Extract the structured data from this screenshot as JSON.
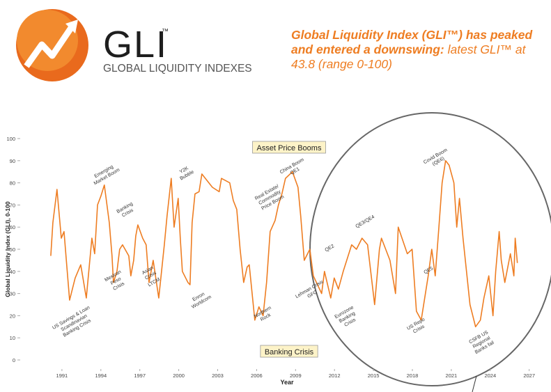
{
  "header": {
    "logo_mark": "GLI",
    "logo_tm": "™",
    "logo_tagline": "GLOBAL LIQUIDITY INDEXES",
    "headline_bold": "Global Liquidity Index (GLI™) has peaked and entered a downswing:",
    "headline_normal": "latest GLI™ at 43.8 (range 0-100)"
  },
  "chart_data": {
    "type": "line",
    "color": "#ee7d22",
    "x_label": "Year",
    "y_label": "Global Liquidity Index (GLI), 0-100",
    "xlim": [
      1988,
      2027.5
    ],
    "xticks": [
      1991,
      1994,
      1997,
      2000,
      2003,
      2006,
      2009,
      2012,
      2015,
      2018,
      2021,
      2024,
      2027
    ],
    "ylim": [
      0,
      100
    ],
    "yticks": [
      0,
      10,
      20,
      30,
      40,
      50,
      60,
      70,
      80,
      90,
      100
    ],
    "x": [
      1990.14,
      1990.3,
      1990.62,
      1990.95,
      1991.16,
      1991.38,
      1991.59,
      1992.02,
      1992.45,
      1992.88,
      1993.31,
      1993.52,
      1993.74,
      1994.0,
      1994.27,
      1994.65,
      1994.86,
      1994.97,
      1995.24,
      1995.45,
      1995.67,
      1996.15,
      1996.31,
      1996.53,
      1996.69,
      1996.85,
      1997.22,
      1997.49,
      1997.71,
      1998.03,
      1998.46,
      1998.89,
      1999.1,
      1999.42,
      1999.64,
      1999.96,
      2000.12,
      2000.28,
      2000.71,
      2000.87,
      2001.03,
      2001.25,
      2001.57,
      2001.78,
      2002.59,
      2003.12,
      2003.29,
      2003.93,
      2004.2,
      2004.47,
      2004.73,
      2005.0,
      2005.27,
      2005.43,
      2005.86,
      2006.18,
      2006.5,
      2006.77,
      2007.04,
      2007.42,
      2007.68,
      2007.95,
      2008.22,
      2008.76,
      2009.19,
      2009.4,
      2009.67,
      2010.1,
      2010.37,
      2010.69,
      2011.01,
      2011.23,
      2011.71,
      2011.98,
      2012.3,
      2012.67,
      2013.32,
      2013.69,
      2014.12,
      2014.55,
      2015.09,
      2015.46,
      2015.62,
      2016.27,
      2016.7,
      2016.91,
      2017.61,
      2017.98,
      2018.31,
      2018.68,
      2019.22,
      2019.49,
      2019.76,
      2020.02,
      2020.29,
      2020.56,
      2020.83,
      2021.2,
      2021.42,
      2021.63,
      2021.9,
      2022.17,
      2022.44,
      2022.87,
      2023.24,
      2023.51,
      2023.89,
      2024.21,
      2024.42,
      2024.69,
      2024.85,
      2025.12,
      2025.55,
      2025.82,
      2025.92,
      2026.09
    ],
    "values": [
      47,
      62,
      77,
      55,
      58,
      42,
      27,
      37,
      43,
      28,
      55,
      48,
      70,
      74,
      79,
      62,
      47,
      35,
      40,
      50,
      52,
      47,
      38,
      45,
      56,
      61,
      55,
      52,
      35,
      45,
      28,
      52,
      65,
      82,
      60,
      73,
      55,
      40,
      35,
      34,
      62,
      75,
      76,
      84,
      78,
      76,
      82,
      80,
      72,
      68,
      50,
      35,
      42,
      43,
      18,
      24,
      20,
      35,
      58,
      63,
      70,
      75,
      82,
      85,
      78,
      65,
      45,
      50,
      38,
      34,
      30,
      40,
      28,
      37,
      32,
      40,
      52,
      50,
      55,
      52,
      25,
      50,
      55,
      45,
      30,
      60,
      48,
      50,
      22,
      18,
      38,
      50,
      38,
      58,
      80,
      90,
      88,
      80,
      60,
      73,
      55,
      40,
      25,
      15,
      18,
      28,
      38,
      20,
      40,
      58,
      45,
      35,
      48,
      38,
      55,
      43.8
    ],
    "boxed_labels": [
      "Asset Price Booms",
      "Banking Crisis"
    ],
    "annotations": [
      [
        "US Savings & Loan",
        "Scandinavian",
        "Banking Crisis"
      ],
      [
        "Emerging",
        "Market Boom"
      ],
      [
        "Banking",
        "Crisis"
      ],
      [
        "Mexican",
        "Peso",
        "Crisis"
      ],
      [
        "Asian",
        "Crisis"
      ],
      [
        "LTCM"
      ],
      [
        "Y2K",
        "Bubble"
      ],
      [
        "Enron",
        "Worldcom"
      ],
      [
        "Real Estate/",
        "Commodity",
        "Price Boom"
      ],
      [
        "China Boom",
        "QE1"
      ],
      [
        "Northern",
        "Rock"
      ],
      [
        "Lehman Crisis",
        "GFC"
      ],
      [
        "QE2"
      ],
      [
        "QE3/QE4"
      ],
      [
        "Eurozone",
        "Banking",
        "Crisis"
      ],
      [
        "US Repo",
        "Crisis"
      ],
      [
        "QE5"
      ],
      [
        "Covid Boom",
        "(QE6)"
      ],
      [
        "CSFB US",
        "Regional",
        "Banks fail"
      ]
    ]
  }
}
